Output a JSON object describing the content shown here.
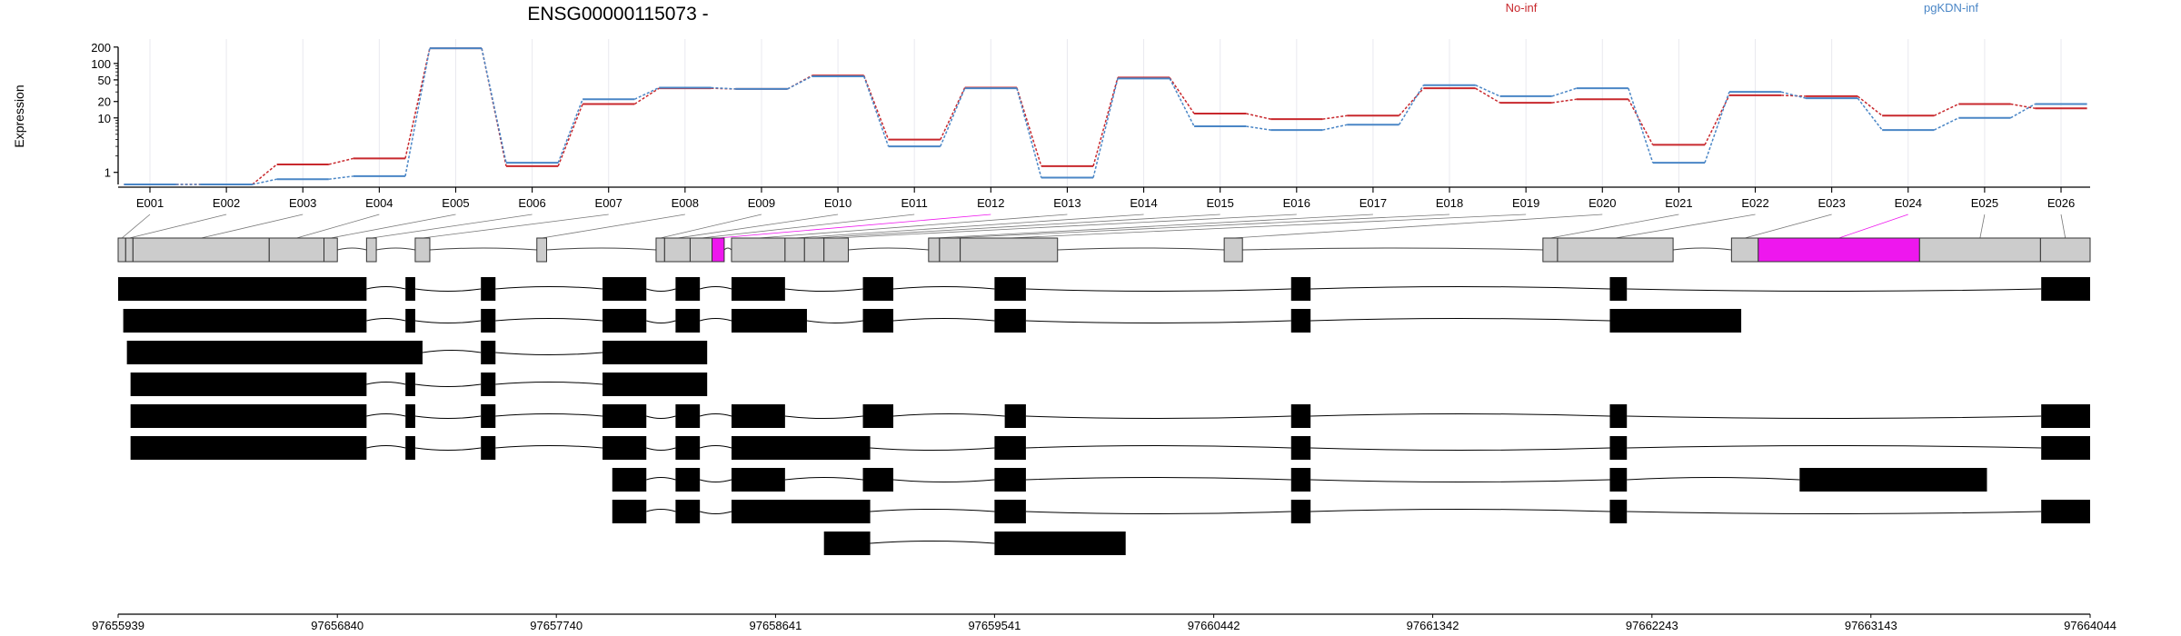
{
  "title": "ENSG00000115073 -",
  "legend": [
    {
      "name": "No-inf",
      "color": "#c8282d"
    },
    {
      "name": "pgKDN-inf",
      "color": "#4a86c6"
    }
  ],
  "highlight_color": "#ee17ee",
  "chart_data": {
    "type": "line",
    "title": "ENSG00000115073 -",
    "ylabel": "Expression",
    "yscale": "log",
    "ylim": [
      0.6,
      250
    ],
    "yticks": [
      "1",
      "10",
      "20",
      "50",
      "100",
      "200"
    ],
    "categories": [
      "E001",
      "E002",
      "E003",
      "E004",
      "E005",
      "E006",
      "E007",
      "E008",
      "E009",
      "E010",
      "E011",
      "E012",
      "E013",
      "E014",
      "E015",
      "E016",
      "E017",
      "E018",
      "E019",
      "E020",
      "E021",
      "E022",
      "E023",
      "E024",
      "E025",
      "E026"
    ],
    "series": [
      {
        "name": "No-inf",
        "color": "#c8282d",
        "values": [
          0.6,
          0.6,
          1.4,
          1.8,
          190,
          1.3,
          18,
          35,
          34,
          60,
          4.0,
          36,
          1.3,
          55,
          12,
          9.5,
          11,
          35,
          19,
          22,
          3.2,
          26,
          25,
          11,
          18,
          15
        ]
      },
      {
        "name": "pgKDN-inf",
        "color": "#4a86c6",
        "values": [
          0.6,
          0.6,
          0.75,
          0.85,
          190,
          1.5,
          22,
          36,
          34,
          58,
          3.0,
          35,
          0.8,
          53,
          7,
          6,
          7.5,
          40,
          25,
          35,
          1.5,
          30,
          23,
          6,
          10,
          18
        ]
      }
    ],
    "genomic_ticks": [
      "97655939",
      "97656840",
      "97657740",
      "97658641",
      "97659541",
      "97660442",
      "97661342",
      "97662243",
      "97663143",
      "97664044"
    ],
    "exons": [
      {
        "id": "E001",
        "start": 97655939,
        "end": 97655970
      },
      {
        "id": "E002",
        "start": 97655970,
        "end": 97656000
      },
      {
        "id": "E003",
        "start": 97656000,
        "end": 97656560
      },
      {
        "id": "E004",
        "start": 97656560,
        "end": 97656785
      },
      {
        "id": "E005",
        "start": 97656785,
        "end": 97656840
      },
      {
        "id": "E006",
        "start": 97656960,
        "end": 97657000
      },
      {
        "id": "E007",
        "start": 97657160,
        "end": 97657220
      },
      {
        "id": "E008",
        "start": 97657660,
        "end": 97657700
      },
      {
        "id": "E009",
        "start": 97658150,
        "end": 97658185
      },
      {
        "id": "E010",
        "start": 97658185,
        "end": 97658290
      },
      {
        "id": "E011",
        "start": 97658290,
        "end": 97658380
      },
      {
        "id": "E012",
        "start": 97658380,
        "end": 97658430
      },
      {
        "id": "E013",
        "start": 97658460,
        "end": 97658680
      },
      {
        "id": "E014",
        "start": 97658680,
        "end": 97658760
      },
      {
        "id": "E015",
        "start": 97658760,
        "end": 97658840
      },
      {
        "id": "E016",
        "start": 97658840,
        "end": 97658940
      },
      {
        "id": "E017",
        "start": 97659270,
        "end": 97659315
      },
      {
        "id": "E018",
        "start": 97659315,
        "end": 97659400
      },
      {
        "id": "E019",
        "start": 97659400,
        "end": 97659800
      },
      {
        "id": "E020",
        "start": 97660485,
        "end": 97660560
      },
      {
        "id": "E021",
        "start": 97661795,
        "end": 97661855
      },
      {
        "id": "E022",
        "start": 97661855,
        "end": 97662330
      },
      {
        "id": "E023",
        "start": 97662570,
        "end": 97662680
      },
      {
        "id": "E024",
        "start": 97662680,
        "end": 97663343
      },
      {
        "id": "E025",
        "start": 97663343,
        "end": 97663840
      },
      {
        "id": "E026",
        "start": 97663840,
        "end": 97664044
      }
    ],
    "highlighted_exons": [
      "E012",
      "E024"
    ],
    "transcripts": [
      [
        [
          97655939,
          97656960
        ],
        [
          97657120,
          97657160
        ],
        [
          97657430,
          97657490
        ],
        [
          97657930,
          97658110
        ],
        [
          97658230,
          97658330
        ],
        [
          97658460,
          97658680
        ],
        [
          97659000,
          97659125
        ],
        [
          97659541,
          97659670
        ],
        [
          97660760,
          97660840
        ],
        [
          97662070,
          97662140
        ],
        [
          97663843,
          97664044
        ]
      ],
      [
        [
          97655960,
          97656960
        ],
        [
          97657120,
          97657160
        ],
        [
          97657430,
          97657490
        ],
        [
          97657930,
          97658110
        ],
        [
          97658230,
          97658330
        ],
        [
          97658460,
          97658770
        ],
        [
          97659000,
          97659125
        ],
        [
          97659541,
          97659670
        ],
        [
          97660760,
          97660840
        ],
        [
          97662070,
          97662610
        ]
      ],
      [
        [
          97655975,
          97657190
        ],
        [
          97657430,
          97657490
        ],
        [
          97657930,
          97658360
        ]
      ],
      [
        [
          97655990,
          97656960
        ],
        [
          97657120,
          97657160
        ],
        [
          97657430,
          97657490
        ],
        [
          97657930,
          97658360
        ]
      ],
      [
        [
          97655990,
          97656960
        ],
        [
          97657120,
          97657160
        ],
        [
          97657430,
          97657490
        ],
        [
          97657930,
          97658110
        ],
        [
          97658230,
          97658330
        ],
        [
          97658460,
          97658680
        ],
        [
          97659000,
          97659125
        ],
        [
          97659583,
          97659670
        ],
        [
          97660760,
          97660840
        ],
        [
          97662070,
          97662140
        ],
        [
          97663843,
          97664044
        ]
      ],
      [
        [
          97655990,
          97656960
        ],
        [
          97657120,
          97657160
        ],
        [
          97657430,
          97657490
        ],
        [
          97657930,
          97658110
        ],
        [
          97658230,
          97658330
        ],
        [
          97658460,
          97659030
        ],
        [
          97659541,
          97659670
        ],
        [
          97660760,
          97660840
        ],
        [
          97662070,
          97662140
        ],
        [
          97663843,
          97664044
        ]
      ],
      [
        [
          97657970,
          97658110
        ],
        [
          97658230,
          97658330
        ],
        [
          97658460,
          97658680
        ],
        [
          97659000,
          97659125
        ],
        [
          97659541,
          97659670
        ],
        [
          97660760,
          97660840
        ],
        [
          97662070,
          97662140
        ],
        [
          97662850,
          97663620
        ]
      ],
      [
        [
          97657970,
          97658110
        ],
        [
          97658230,
          97658330
        ],
        [
          97658460,
          97659030
        ],
        [
          97659541,
          97659670
        ],
        [
          97660760,
          97660840
        ],
        [
          97662070,
          97662140
        ],
        [
          97663843,
          97664044
        ]
      ],
      [
        [
          97658840,
          97659030
        ],
        [
          97659541,
          97660080
        ]
      ]
    ]
  }
}
